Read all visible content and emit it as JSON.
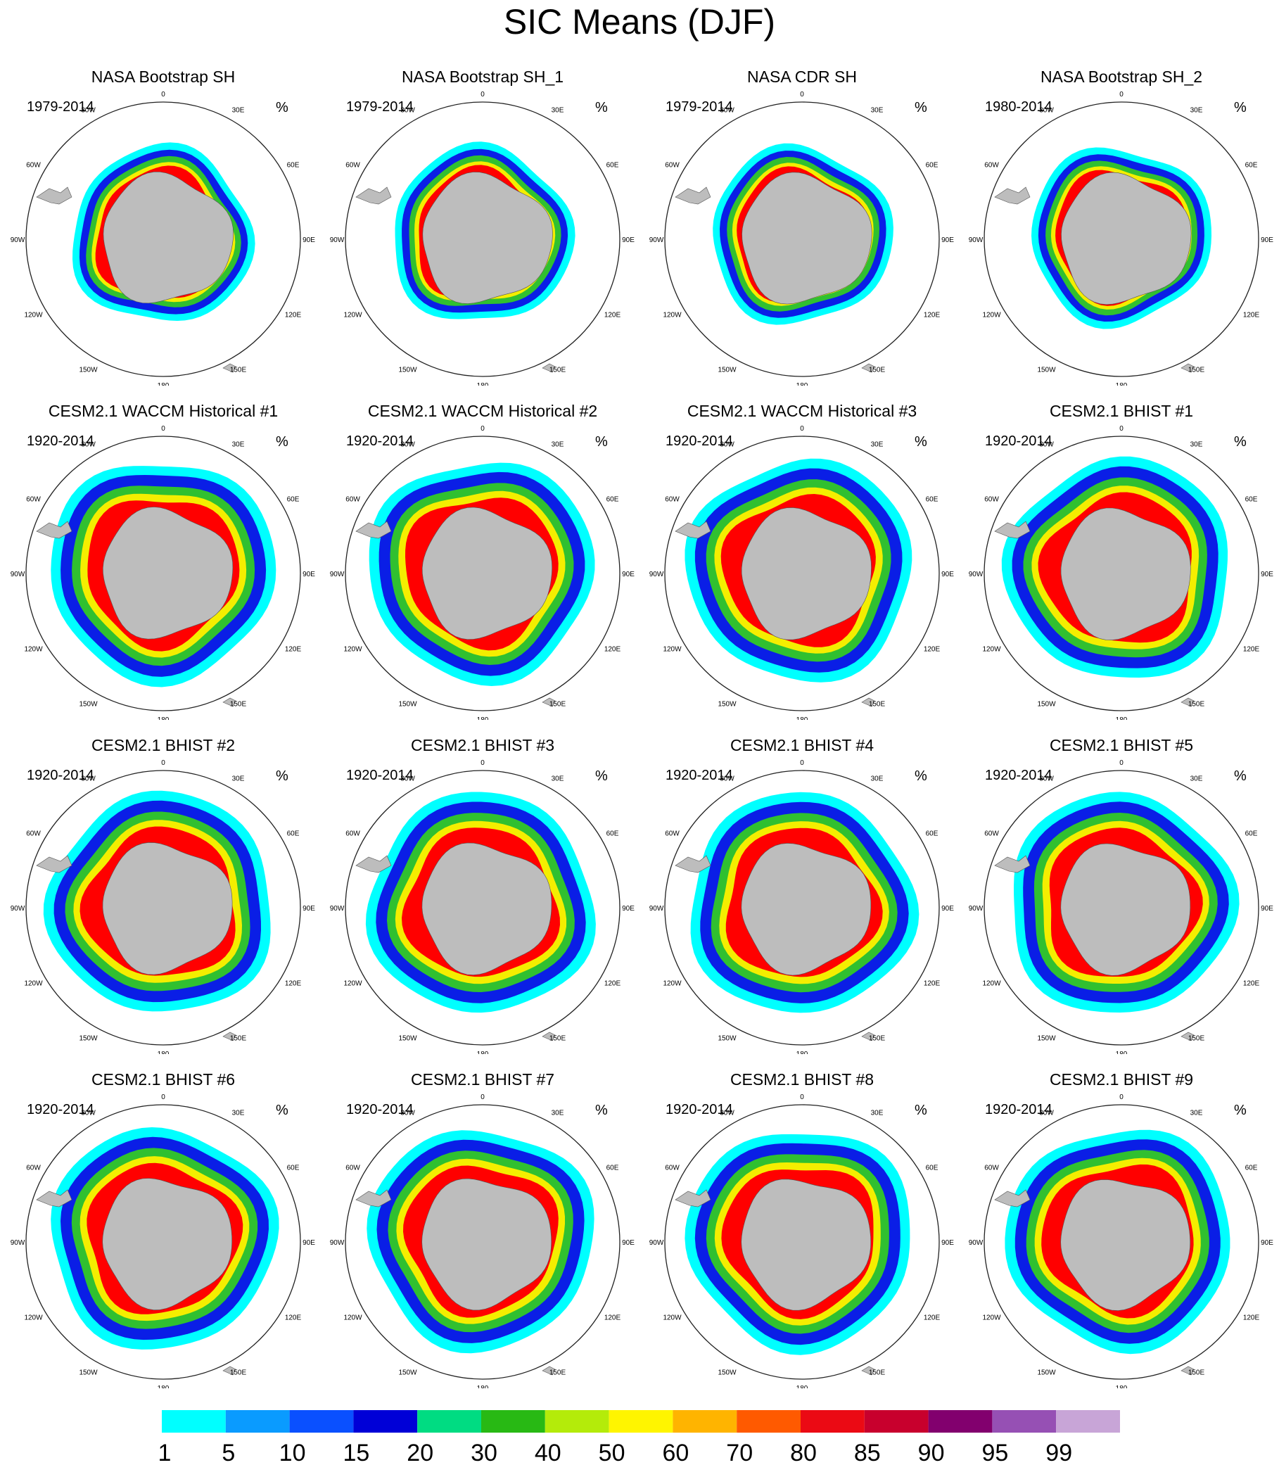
{
  "figure": {
    "title": "SIC Means (DJF)",
    "unit_label": "%",
    "colors": {
      "land": "#bdbdbd",
      "ring": "#222222",
      "ice_outer": "#00ffff",
      "ice_mid": "#0a1ee6",
      "ice_inner": "#30c030",
      "ice_core": "#f4ee00",
      "ice_high": "#ff0000"
    }
  },
  "chart_data": {
    "type": "heatmap",
    "projection": "south-polar-stereographic",
    "variable": "SIC",
    "season": "DJF",
    "longitude_labels": [
      "0",
      "30E",
      "60E",
      "90E",
      "120E",
      "150E",
      "180",
      "150W",
      "120W",
      "90W",
      "60W",
      "30W"
    ],
    "panels": [
      {
        "title": "NASA Bootstrap SH",
        "period": "1979-2014",
        "kind": "obs"
      },
      {
        "title": "NASA Bootstrap SH_1",
        "period": "1979-2014",
        "kind": "obs"
      },
      {
        "title": "NASA CDR SH",
        "period": "1979-2014",
        "kind": "obs"
      },
      {
        "title": "NASA Bootstrap SH_2",
        "period": "1980-2014",
        "kind": "obs"
      },
      {
        "title": "CESM2.1 WACCM Historical #1",
        "period": "1920-2014",
        "kind": "model"
      },
      {
        "title": "CESM2.1 WACCM Historical #2",
        "period": "1920-2014",
        "kind": "model"
      },
      {
        "title": "CESM2.1 WACCM Historical #3",
        "period": "1920-2014",
        "kind": "model"
      },
      {
        "title": "CESM2.1 BHIST #1",
        "period": "1920-2014",
        "kind": "model"
      },
      {
        "title": "CESM2.1 BHIST #2",
        "period": "1920-2014",
        "kind": "model"
      },
      {
        "title": "CESM2.1 BHIST #3",
        "period": "1920-2014",
        "kind": "model"
      },
      {
        "title": "CESM2.1 BHIST #4",
        "period": "1920-2014",
        "kind": "model"
      },
      {
        "title": "CESM2.1 BHIST #5",
        "period": "1920-2014",
        "kind": "model"
      },
      {
        "title": "CESM2.1 BHIST #6",
        "period": "1920-2014",
        "kind": "model"
      },
      {
        "title": "CESM2.1 BHIST #7",
        "period": "1920-2014",
        "kind": "model"
      },
      {
        "title": "CESM2.1 BHIST #8",
        "period": "1920-2014",
        "kind": "model"
      },
      {
        "title": "CESM2.1 BHIST #9",
        "period": "1920-2014",
        "kind": "model"
      }
    ],
    "colorbar": {
      "levels": [
        "1",
        "5",
        "10",
        "15",
        "20",
        "30",
        "40",
        "50",
        "60",
        "70",
        "80",
        "85",
        "90",
        "95",
        "99"
      ],
      "colors": [
        "#00ffff",
        "#0a9bff",
        "#0a50ff",
        "#0000d7",
        "#00dc82",
        "#28b914",
        "#b4eb0a",
        "#fff500",
        "#ffb400",
        "#ff5a00",
        "#eb0a14",
        "#c8002d",
        "#82006e",
        "#9650b4",
        "#c8a5d7"
      ]
    }
  }
}
